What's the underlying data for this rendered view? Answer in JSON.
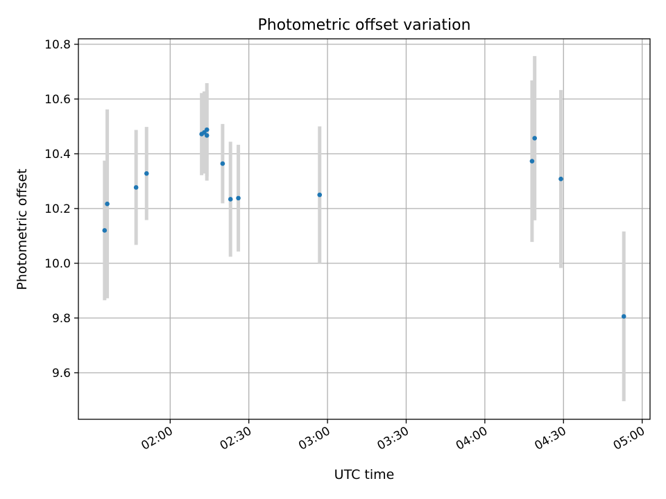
{
  "chart_data": {
    "type": "scatter",
    "title": "Photometric offset variation",
    "xlabel": "UTC time",
    "ylabel": "Photometric offset",
    "x_axis_type": "time",
    "xlim": [
      "01:25",
      "05:03"
    ],
    "ylim": [
      9.43,
      10.82
    ],
    "x_ticks": [
      "02:00",
      "02:30",
      "03:00",
      "03:30",
      "04:00",
      "04:30",
      "05:00"
    ],
    "y_ticks": [
      9.6,
      9.8,
      10.0,
      10.2,
      10.4,
      10.6,
      10.8
    ],
    "grid": true,
    "marker_color": "#1f77b4",
    "errorbar_color": "#d3d3d3",
    "series": [
      {
        "points": [
          {
            "x": "01:35",
            "y": 10.12,
            "yerr": 0.255
          },
          {
            "x": "01:36",
            "y": 10.217,
            "yerr": 0.345
          },
          {
            "x": "01:47",
            "y": 10.277,
            "yerr": 0.21
          },
          {
            "x": "01:51",
            "y": 10.328,
            "yerr": 0.17
          },
          {
            "x": "02:12",
            "y": 10.472,
            "yerr": 0.15
          },
          {
            "x": "02:13",
            "y": 10.478,
            "yerr": 0.15
          },
          {
            "x": "02:14",
            "y": 10.488,
            "yerr": 0.17
          },
          {
            "x": "02:14",
            "y": 10.467,
            "yerr": 0.165
          },
          {
            "x": "02:20",
            "y": 10.364,
            "yerr": 0.145
          },
          {
            "x": "02:23",
            "y": 10.234,
            "yerr": 0.21
          },
          {
            "x": "02:26",
            "y": 10.238,
            "yerr": 0.195
          },
          {
            "x": "02:57",
            "y": 10.25,
            "yerr": 0.25
          },
          {
            "x": "04:18",
            "y": 10.373,
            "yerr": 0.295
          },
          {
            "x": "04:19",
            "y": 10.457,
            "yerr": 0.3
          },
          {
            "x": "04:29",
            "y": 10.308,
            "yerr": 0.325
          },
          {
            "x": "04:53",
            "y": 9.806,
            "yerr": 0.31
          }
        ]
      }
    ]
  }
}
